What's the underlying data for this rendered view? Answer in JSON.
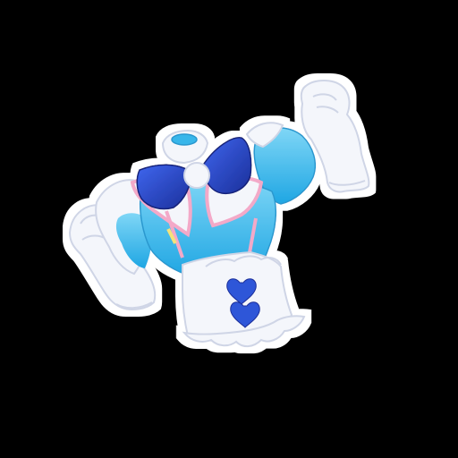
{
  "image": {
    "subject": "costume-outfit-sticker",
    "background_color": "#000000",
    "outline_color": "#ffffff",
    "colors": {
      "blouse_blue": "#38b6ea",
      "blouse_light": "#8fdcf7",
      "bow_blue": "#2a4fd6",
      "bow_dark": "#1b2f9a",
      "trim_pink": "#f3a9c8",
      "glove_white": "#f4f6fb",
      "glove_shade": "#d7dcea",
      "heart_blue": "#2f56d8",
      "ribbon_yellow": "#f5e27a"
    },
    "icons": [
      "hat-icon",
      "bow-icon",
      "heart-icon",
      "glove-icon"
    ]
  }
}
